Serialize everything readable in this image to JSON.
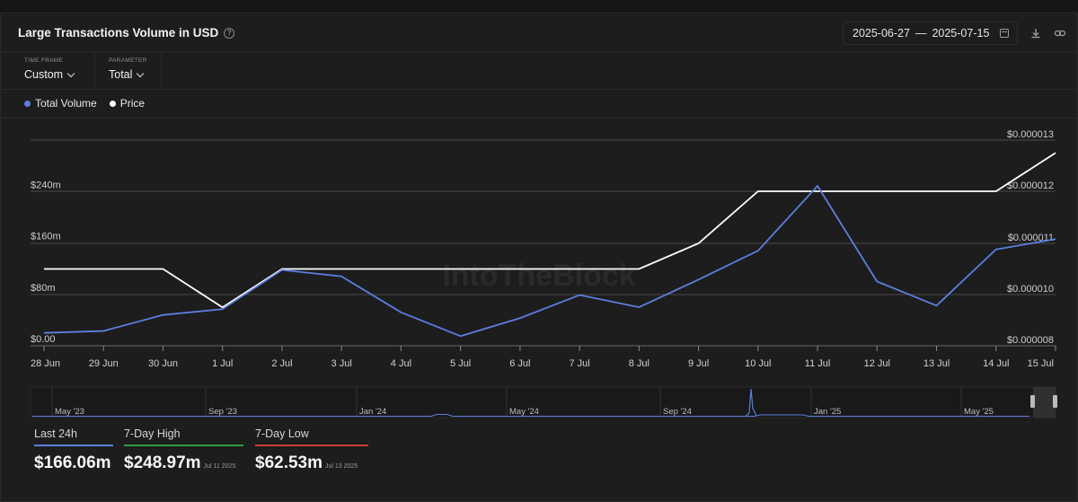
{
  "header": {
    "title": "Large Transactions Volume in USD",
    "date_start": "2025-06-27",
    "date_sep": "—",
    "date_end": "2025-07-15"
  },
  "controls": {
    "time_frame_label": "TIME FRAME",
    "time_frame_value": "Custom",
    "parameter_label": "PARAMETER",
    "parameter_value": "Total"
  },
  "icons": [
    "help-icon",
    "calendar-icon",
    "download-icon",
    "link-icon",
    "chevron-down-icon"
  ],
  "colors": {
    "volume": "#5b7fe0",
    "price": "#ffffff",
    "high": "#2e9e44",
    "low": "#d23b3b",
    "last": "#5b7fe0"
  },
  "chart_data": {
    "type": "line",
    "watermark": "IntoTheBlock",
    "legend": [
      "Total Volume",
      "Price"
    ],
    "legend_position": "top-left",
    "categories": [
      "28 Jun",
      "29 Jun",
      "30 Jun",
      "1 Jul",
      "2 Jul",
      "3 Jul",
      "4 Jul",
      "5 Jul",
      "6 Jul",
      "7 Jul",
      "8 Jul",
      "9 Jul",
      "10 Jul",
      "11 Jul",
      "12 Jul",
      "13 Jul",
      "14 Jul",
      "15 Jul"
    ],
    "series": [
      {
        "name": "Total Volume",
        "axis": "left",
        "values": [
          20,
          23,
          48,
          57,
          118,
          108,
          52,
          15,
          43,
          79,
          60,
          103,
          148,
          248.97,
          100,
          62.53,
          150,
          166.06
        ]
      },
      {
        "name": "Price",
        "axis": "right",
        "values": [
          1.05e-05,
          1.05e-05,
          1.05e-05,
          9.5e-06,
          1.05e-05,
          1.05e-05,
          1.05e-05,
          1.05e-05,
          1.05e-05,
          1.05e-05,
          1.05e-05,
          1.1e-05,
          1.2e-05,
          1.2e-05,
          1.2e-05,
          1.2e-05,
          1.2e-05,
          1.275e-05
        ]
      }
    ],
    "y_left": {
      "ticks": [
        "$0.00",
        "$80m",
        "$160m",
        "$240m"
      ],
      "tick_values": [
        0,
        80,
        160,
        240
      ],
      "range": [
        0,
        320
      ]
    },
    "y_right": {
      "ticks": [
        "$0.000008",
        "$0.000010",
        "$0.000011",
        "$0.000012",
        "$0.000013"
      ],
      "tick_values": [
        8e-06,
        1e-05,
        1.1e-05,
        1.2e-05,
        1.3e-05
      ],
      "range": [
        8e-06,
        1.3e-05
      ]
    },
    "grid": true
  },
  "navigator": {
    "labels": [
      "May '23",
      "Sep '23",
      "Jan '24",
      "May '24",
      "Sep '24",
      "Jan '25",
      "May '25"
    ]
  },
  "stats": {
    "last24h": {
      "label": "Last 24h",
      "value": "$166.06m"
    },
    "high": {
      "label": "7-Day High",
      "value": "$248.97m",
      "date": "Jul 11 2025"
    },
    "low": {
      "label": "7-Day Low",
      "value": "$62.53m",
      "date": "Jul 13 2025"
    }
  }
}
